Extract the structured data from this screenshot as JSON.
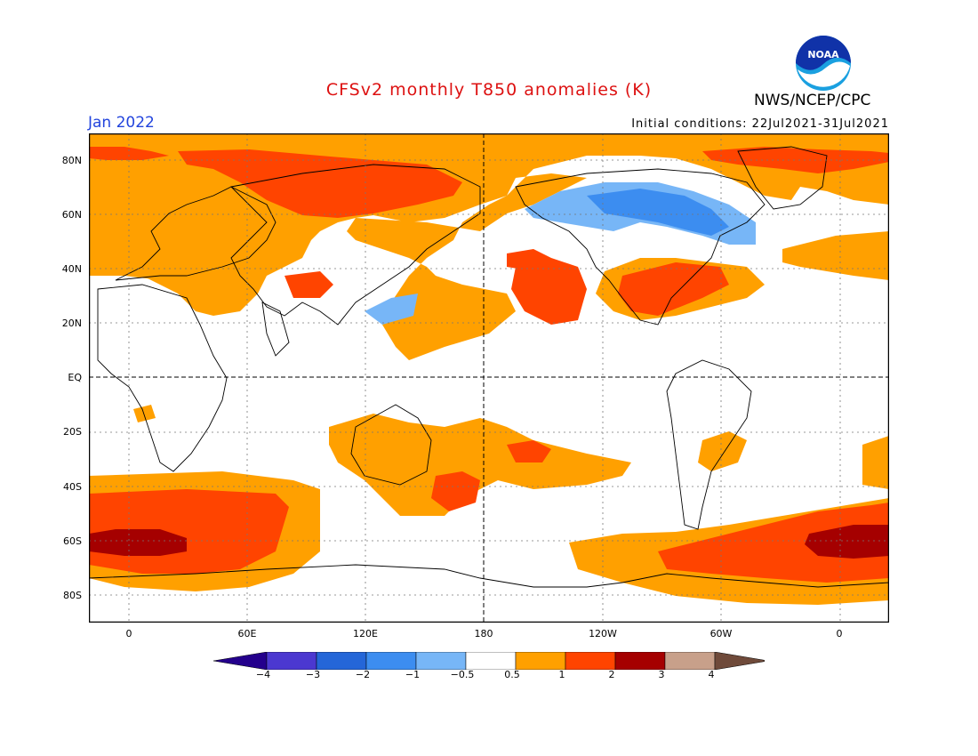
{
  "header": {
    "title": "CFSv2 monthly T850 anomalies (K)",
    "month": "Jan 2022",
    "initial_conditions": "Initial conditions: 22Jul2021-31Jul2021",
    "agency": "NWS/NCEP/CPC",
    "logo_text": "NOAA"
  },
  "colors": {
    "title": "#dd1111",
    "month": "#2244dd",
    "land_outline": "#000000",
    "background": "#ffffff"
  },
  "map": {
    "lat_labels": [
      "80N",
      "60N",
      "40N",
      "20N",
      "EQ",
      "20S",
      "40S",
      "60S",
      "80S"
    ],
    "lon_labels": [
      "0",
      "60E",
      "120E",
      "180",
      "120W",
      "60W",
      "0"
    ]
  },
  "colorbar": {
    "colors": [
      "#24008c",
      "#4b38d0",
      "#2466d8",
      "#3c8df0",
      "#77b6f7",
      "#ffffff",
      "#ffa000",
      "#ff4400",
      "#a50000",
      "#c8a08a",
      "#6f4a3a"
    ],
    "labels": [
      "−4",
      "−3",
      "−2",
      "−1",
      "−0.5",
      "0.5",
      "1",
      "2",
      "3",
      "4"
    ]
  }
}
